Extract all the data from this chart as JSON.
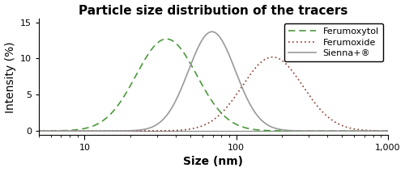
{
  "title": "Particle size distribution of the tracers",
  "xlabel": "Size (nm)",
  "ylabel": "Intensity (%)",
  "xlim": [
    5,
    1000
  ],
  "ylim": [
    -0.6,
    15.5
  ],
  "yticks": [
    0,
    5,
    10,
    15
  ],
  "curves": [
    {
      "name": "Ferumoxytol",
      "color": "#4a9a3a",
      "linestyle": "dashed",
      "linewidth": 1.2,
      "mean_log": 1.54,
      "std_log": 0.2,
      "peak": 12.7
    },
    {
      "name": "Ferumoxide",
      "color": "#8b3a2a",
      "linestyle": "dotted",
      "linewidth": 1.2,
      "mean_log": 2.24,
      "std_log": 0.2,
      "peak": 10.2
    },
    {
      "name": "Sienna+®",
      "color": "#999999",
      "linestyle": "solid",
      "linewidth": 1.2,
      "mean_log": 1.84,
      "std_log": 0.155,
      "peak": 13.7
    }
  ],
  "legend_loc": "upper right",
  "title_fontsize": 11,
  "label_fontsize": 10,
  "tick_fontsize": 8,
  "figsize": [
    5.0,
    2.13
  ],
  "dpi": 100
}
